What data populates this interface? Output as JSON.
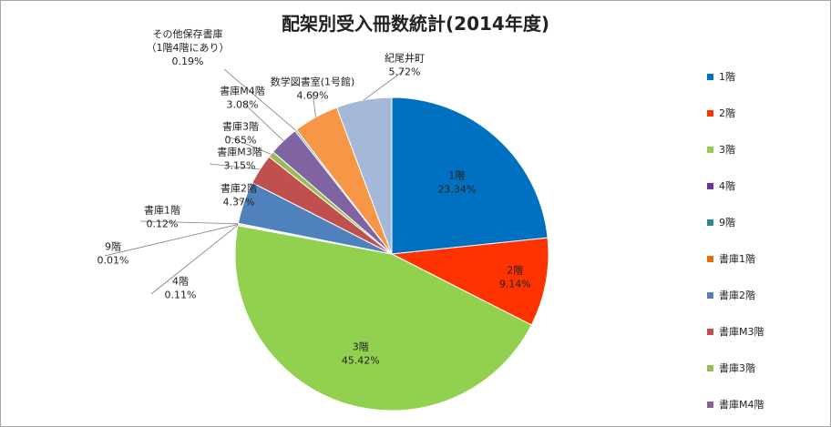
{
  "chart_data": {
    "type": "pie",
    "title": "配架別受入冊数統計(2014年度)",
    "slices": [
      {
        "label": "1階",
        "value": 23.34,
        "percent_text": "23.34%",
        "color": "#0070c0"
      },
      {
        "label": "2階",
        "value": 9.14,
        "percent_text": "9.14%",
        "color": "#ff3300"
      },
      {
        "label": "3階",
        "value": 45.42,
        "percent_text": "45.42%",
        "color": "#92d050"
      },
      {
        "label": "4階",
        "value": 0.11,
        "percent_text": "0.11%",
        "color": "#7030a0"
      },
      {
        "label": "9階",
        "value": 0.01,
        "percent_text": "0.01%",
        "color": "#31859c"
      },
      {
        "label": "書庫1階",
        "value": 0.12,
        "percent_text": "0.12%",
        "color": "#e46c0a"
      },
      {
        "label": "書庫2階",
        "value": 4.37,
        "percent_text": "4.37%",
        "color": "#4f81bd"
      },
      {
        "label": "書庫M3階",
        "value": 3.15,
        "percent_text": "3.15%",
        "color": "#c0504d"
      },
      {
        "label": "書庫3階",
        "value": 0.65,
        "percent_text": "0.65%",
        "color": "#9bbb59"
      },
      {
        "label": "書庫M4階",
        "value": 3.08,
        "percent_text": "3.08%",
        "color": "#8064a2"
      },
      {
        "label": "その他保存書庫",
        "label_line2": "（1階4階にあり）",
        "value": 0.19,
        "percent_text": "0.19%",
        "color": "#4bacc6"
      },
      {
        "label": "数学図書室(1号館)",
        "value": 4.69,
        "percent_text": "4.69%",
        "color": "#f79646"
      },
      {
        "label": "紀尾井町",
        "value": 5.72,
        "percent_text": "5.72%",
        "color": "#a5b8d9"
      }
    ],
    "legend_visible": [
      "1階",
      "2階",
      "3階",
      "4階",
      "9階",
      "書庫1階",
      "書庫2階",
      "書庫M3階",
      "書庫3階",
      "書庫M4階"
    ],
    "legend_position": "right"
  }
}
